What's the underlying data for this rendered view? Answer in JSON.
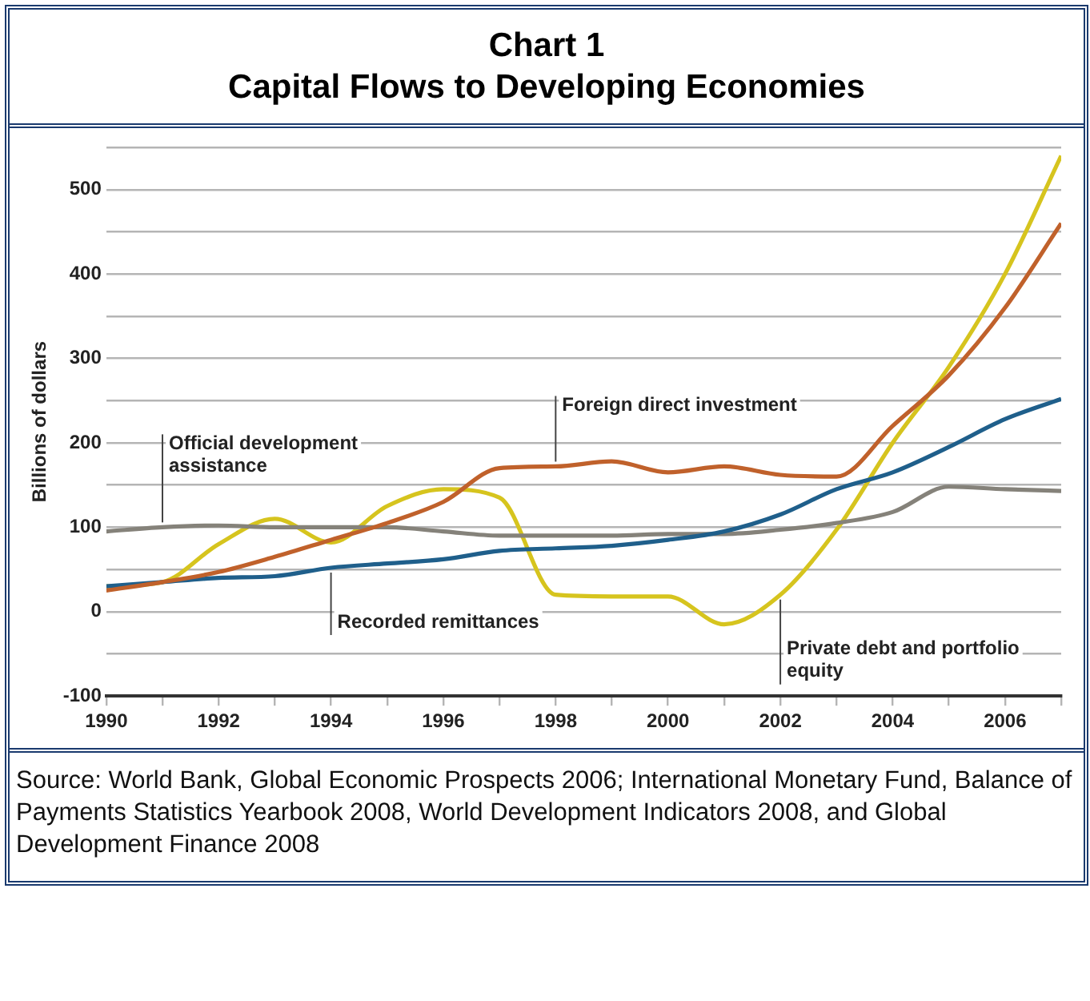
{
  "chart_data": {
    "type": "line",
    "title": "Chart 1",
    "subtitle": "Capital Flows to Developing Economies",
    "ylabel": "Billions of dollars",
    "x": [
      1990,
      1991,
      1992,
      1993,
      1994,
      1995,
      1996,
      1997,
      1998,
      1999,
      2000,
      2001,
      2002,
      2003,
      2004,
      2005,
      2006,
      2007
    ],
    "series": [
      {
        "color": "#c0612b",
        "values": [
          25,
          35,
          47,
          65,
          85,
          105,
          130,
          170,
          172,
          178,
          165,
          172,
          162,
          160,
          220,
          280,
          360,
          460
        ]
      },
      {
        "color": "#1f5f8b",
        "values": [
          30,
          35,
          40,
          42,
          52,
          57,
          62,
          72,
          75,
          78,
          85,
          95,
          115,
          145,
          165,
          195,
          228,
          252
        ]
      },
      {
        "color": "#85827a",
        "values": [
          95,
          100,
          102,
          100,
          100,
          100,
          95,
          90,
          90,
          90,
          92,
          92,
          97,
          105,
          118,
          148,
          145,
          143
        ]
      },
      {
        "color": "#d6c41e",
        "values": [
          30,
          35,
          80,
          110,
          82,
          125,
          145,
          135,
          20,
          18,
          18,
          -15,
          20,
          97,
          200,
          290,
          400,
          540
        ]
      }
    ],
    "xlim": [
      1990,
      2007
    ],
    "xticks": [
      1990,
      {
        "value": 1991,
        "label": null
      },
      1992,
      {
        "value": 1993,
        "label": null
      },
      1994,
      {
        "value": 1995,
        "label": null
      },
      1996,
      {
        "value": 1997,
        "label": null
      },
      1998,
      {
        "value": 1999,
        "label": null
      },
      2000,
      {
        "value": 2001,
        "label": null
      },
      2002,
      {
        "value": 2003,
        "label": null
      },
      2004,
      {
        "value": 2005,
        "label": null
      },
      2006,
      {
        "value": 2007,
        "label": null
      }
    ],
    "ylim": [
      -100,
      550
    ],
    "yticks": [
      -100,
      {
        "value": -50,
        "label": null
      },
      0,
      {
        "value": 50,
        "label": null
      },
      100,
      {
        "value": 150,
        "label": null
      },
      200,
      {
        "value": 250,
        "label": null
      },
      300,
      {
        "value": 350,
        "label": null
      },
      400,
      {
        "value": 450,
        "label": null
      },
      500,
      {
        "value": 550,
        "label": null
      }
    ],
    "grid": "y",
    "legend": false,
    "marker": "none",
    "line_style": "solid",
    "annotations": [
      {
        "text": "Official development assistance",
        "x": 1991,
        "y": 100
      },
      {
        "text": "Recorded remittances",
        "x": 1994,
        "y": 52
      },
      {
        "text": "Foreign direct investment",
        "x": 1998,
        "y": 172
      },
      {
        "text": "Private debt and portfolio equity",
        "x": 2002,
        "y": 20
      },
      "Source: World Bank, Global Economic Prospects 2006; International Monetary Fund, Balance of Payments Statistics Yearbook 2008, World Development Indicators 2008, and Global Development Finance 2008"
    ]
  }
}
